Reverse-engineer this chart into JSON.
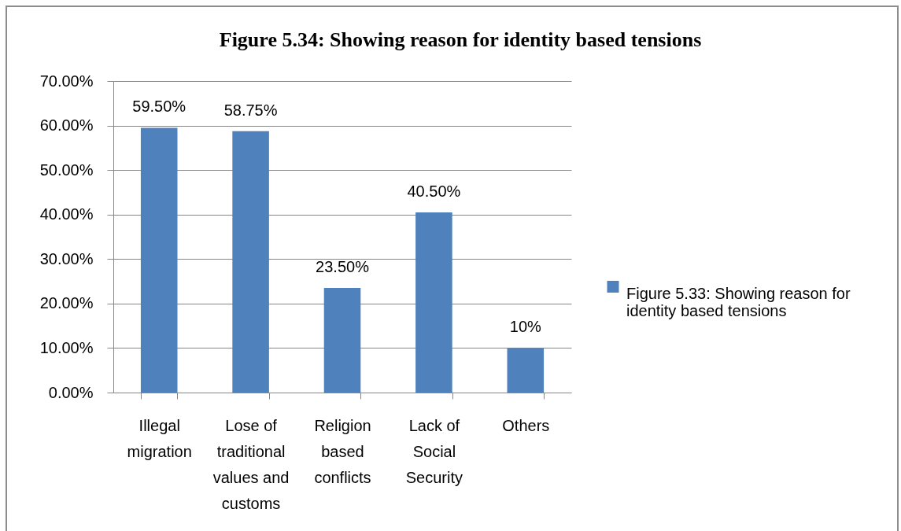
{
  "chart_data": {
    "type": "bar",
    "title": "Figure 5.34: Showing reason for identity based tensions",
    "categories": [
      "Illegal migration",
      "Lose of traditional values and customs",
      "Religion based conflicts",
      "Lack of Social Security",
      "Others"
    ],
    "series": [
      {
        "name": "Figure 5.33: Showing reason for identity based tensions",
        "color": "#4f81bd",
        "values": [
          59.5,
          58.75,
          23.5,
          40.5,
          10
        ],
        "value_labels": [
          "59.50%",
          "58.75%",
          "23.50%",
          "40.50%",
          "10%"
        ]
      }
    ],
    "ylim": [
      0,
      70
    ],
    "yticks": [
      {
        "value": 0,
        "label": "0.00%"
      },
      {
        "value": 10,
        "label": "10.00%"
      },
      {
        "value": 20,
        "label": "20.00%"
      },
      {
        "value": 30,
        "label": "30.00%"
      },
      {
        "value": 40,
        "label": "40.00%"
      },
      {
        "value": 50,
        "label": "50.00%"
      },
      {
        "value": 60,
        "label": "60.00%"
      },
      {
        "value": 70,
        "label": "70.00%"
      }
    ],
    "grid": "y",
    "legend": "right"
  }
}
